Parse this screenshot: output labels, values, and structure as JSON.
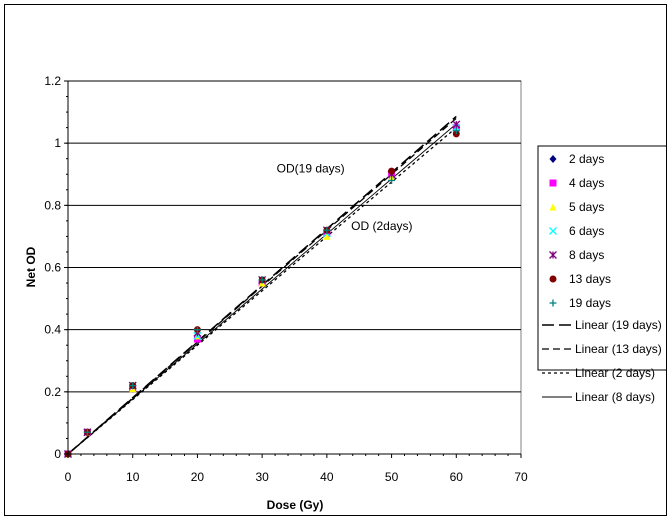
{
  "chart_data": {
    "type": "scatter",
    "xlabel": "Dose (Gy)",
    "ylabel": "Net OD",
    "xlim": [
      0,
      70
    ],
    "ylim": [
      0,
      1.2
    ],
    "xticks": [
      "0",
      "10",
      "20",
      "30",
      "40",
      "50",
      "60",
      "70"
    ],
    "yticks": [
      "0",
      "0.2",
      "0.4",
      "0.6",
      "0.8",
      "1",
      "1.2"
    ],
    "grid": "horizontal",
    "legend_position": "right",
    "series": [
      {
        "name": "2 days",
        "marker": "diamond",
        "color": "#000080",
        "x": [
          0,
          3,
          10,
          20,
          30,
          40,
          50,
          60
        ],
        "y": [
          0,
          0.07,
          0.21,
          0.38,
          0.55,
          0.71,
          0.89,
          1.05
        ]
      },
      {
        "name": "4 days",
        "marker": "square",
        "color": "#ff00ff",
        "x": [
          0,
          3,
          10,
          20,
          30,
          40,
          50,
          60
        ],
        "y": [
          0,
          0.07,
          0.21,
          0.37,
          0.55,
          0.71,
          0.9,
          1.05
        ]
      },
      {
        "name": "5 days",
        "marker": "triangle",
        "color": "#ffff00",
        "x": [
          0,
          3,
          10,
          20,
          30,
          40,
          50,
          60
        ],
        "y": [
          0,
          0.07,
          0.21,
          0.38,
          0.55,
          0.7,
          0.89,
          1.04
        ]
      },
      {
        "name": "6 days",
        "marker": "x",
        "color": "#00ffff",
        "x": [
          0,
          3,
          10,
          20,
          30,
          40,
          50,
          60
        ],
        "y": [
          0,
          0.07,
          0.22,
          0.38,
          0.56,
          0.71,
          0.9,
          1.05
        ]
      },
      {
        "name": "8 days",
        "marker": "star",
        "color": "#800080",
        "x": [
          0,
          3,
          10,
          20,
          30,
          40,
          50,
          60
        ],
        "y": [
          0,
          0.07,
          0.22,
          0.39,
          0.56,
          0.72,
          0.9,
          1.06
        ]
      },
      {
        "name": "13 days",
        "marker": "circle",
        "color": "#800000",
        "x": [
          0,
          3,
          10,
          20,
          30,
          40,
          50,
          60
        ],
        "y": [
          0,
          0.07,
          0.22,
          0.4,
          0.56,
          0.72,
          0.91,
          1.03
        ]
      },
      {
        "name": "19 days",
        "marker": "plus",
        "color": "#008080",
        "x": [
          0,
          3,
          10,
          20,
          30,
          40,
          50,
          60
        ],
        "y": [
          0,
          0.07,
          0.22,
          0.4,
          0.56,
          0.72,
          0.88,
          1.04
        ]
      }
    ],
    "trendlines": [
      {
        "name": "Linear (19 days)",
        "dash": "long-dash",
        "slope": 0.0181,
        "x_end": 60
      },
      {
        "name": "Linear (13 days)",
        "dash": "medium-dash",
        "slope": 0.018,
        "x_end": 60
      },
      {
        "name": "Linear (2 days)",
        "dash": "short-dash",
        "slope": 0.0175,
        "x_end": 60
      },
      {
        "name": "Linear (8 days)",
        "dash": "solid",
        "slope": 0.0177,
        "x_end": 60
      }
    ],
    "annotations": [
      {
        "text": "OD(19 days)",
        "x": 37.5,
        "y": 0.905
      },
      {
        "text": "OD (2days)",
        "x": 48.5,
        "y": 0.72
      }
    ]
  }
}
